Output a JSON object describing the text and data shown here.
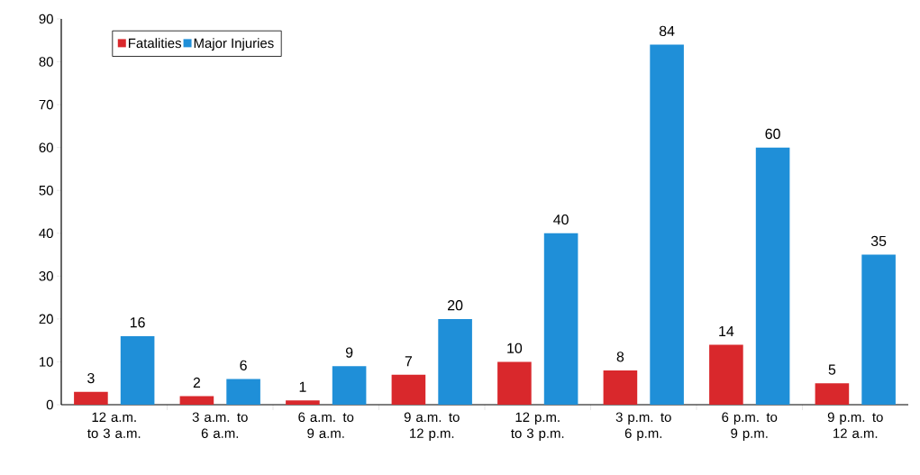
{
  "chart_data": {
    "type": "bar",
    "categories": [
      "12 a.m. to 3 a.m.",
      "3 a.m. to 6 a.m.",
      "6 a.m. to 9 a.m.",
      "9 a.m. to 12 p.m.",
      "12 p.m. to 3 p.m.",
      "3 p.m. to 6 p.m.",
      "6 p.m. to 9 p.m.",
      "9 p.m. to 12 a.m."
    ],
    "series": [
      {
        "name": "Fatalities",
        "color": "#d9282c",
        "values": [
          3,
          2,
          1,
          7,
          10,
          8,
          14,
          5
        ]
      },
      {
        "name": "Major Injuries",
        "color": "#1f8fd8",
        "values": [
          16,
          6,
          9,
          20,
          40,
          84,
          60,
          35
        ]
      }
    ],
    "ylim": [
      0,
      90
    ],
    "yticks": [
      0,
      10,
      20,
      30,
      40,
      50,
      60,
      70,
      80,
      90
    ],
    "data_labels": true,
    "legend": "top left",
    "grid": false
  }
}
